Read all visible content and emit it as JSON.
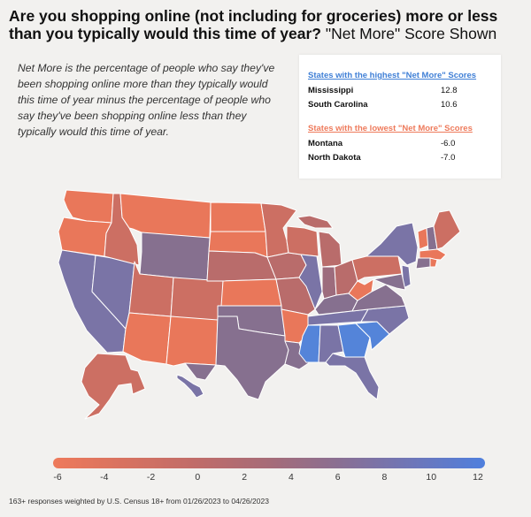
{
  "title": {
    "main": "Are you shopping online (not including for groceries) more or less than you typically would this time of year?",
    "suffix": "\"Net More\" Score Shown"
  },
  "description": "Net More is the percentage of people who say they've been shopping online more than they typically would this time of year minus the percentage of people who say they've been shopping online less than they typically would this time of year.",
  "highest": {
    "heading": "States with the highest \"Net More\" Scores",
    "color": "#3f7fd6",
    "rows": [
      {
        "state": "Mississippi",
        "value": "12.8"
      },
      {
        "state": "South Carolina",
        "value": "10.6"
      }
    ]
  },
  "lowest": {
    "heading": "States with the lowest \"Net More\" Scores",
    "color": "#ee7a5b",
    "rows": [
      {
        "state": "Montana",
        "value": "-6.0"
      },
      {
        "state": "North Dakota",
        "value": "-7.0"
      }
    ]
  },
  "scale": {
    "ticks": [
      "-6",
      "-4",
      "-2",
      "0",
      "2",
      "4",
      "6",
      "8",
      "10",
      "12"
    ],
    "min_value": -6,
    "max_value": 12
  },
  "colors": {
    "coral": "#e9775a",
    "salmon": "#cc6f63",
    "rose": "#b96c6b",
    "mauve": "#9d6c7d",
    "purple": "#86708f",
    "slate": "#7a74a6",
    "blue": "#5484d9",
    "border": "#ffffff"
  },
  "footnote": "163+ responses weighted by U.S. Census 18+ from 01/26/2023 to 04/26/2023"
}
